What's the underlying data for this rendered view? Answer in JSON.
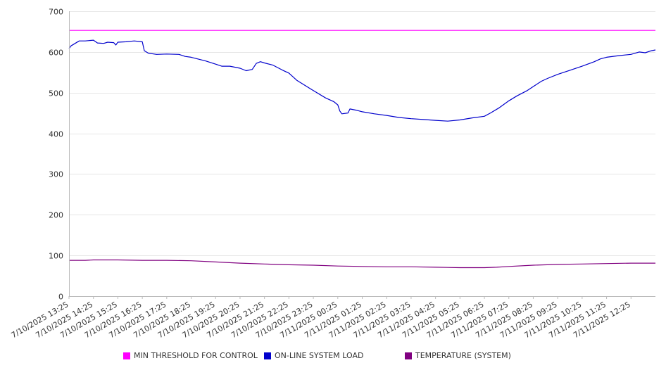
{
  "chart_data": {
    "type": "line",
    "title": "",
    "xlabel": "",
    "ylabel": "",
    "ylim": [
      0,
      700
    ],
    "y_ticks": [
      0,
      100,
      200,
      300,
      400,
      500,
      600,
      700
    ],
    "x_tick_labels": [
      "7/10/2025 13:25",
      "7/10/2025 14:25",
      "7/10/2025 15:25",
      "7/10/2025 16:25",
      "7/10/2025 17:25",
      "7/10/2025 18:25",
      "7/10/2025 19:25",
      "7/10/2025 20:25",
      "7/10/2025 21:25",
      "7/10/2025 22:25",
      "7/10/2025 23:25",
      "7/11/2025 00:25",
      "7/11/2025 01:25",
      "7/11/2025 02:25",
      "7/11/2025 03:25",
      "7/11/2025 04:25",
      "7/11/2025 05:25",
      "7/11/2025 06:25",
      "7/11/2025 07:25",
      "7/11/2025 08:25",
      "7/11/2025 09:25",
      "7/11/2025 10:25",
      "7/11/2025 11:25",
      "7/11/2025 12:25"
    ],
    "x_range": [
      "7/10/2025 13:25",
      "7/11/2025 13:25"
    ],
    "grid": "horizontal",
    "legend_position": "bottom",
    "series": [
      {
        "name": "MIN THRESHOLD FOR CONTROL",
        "color": "#ff00ff",
        "points": [
          [
            "7/10/2025 13:25",
            653
          ],
          [
            "7/11/2025 13:25",
            653
          ]
        ]
      },
      {
        "name": "ON-LINE SYSTEM LOAD",
        "color": "#0000cc",
        "points": [
          [
            "7/10/2025 13:25",
            608
          ],
          [
            "7/10/2025 13:30",
            615
          ],
          [
            "7/10/2025 13:40",
            621
          ],
          [
            "7/10/2025 13:50",
            627
          ],
          [
            "7/10/2025 14:05",
            627
          ],
          [
            "7/10/2025 14:25",
            629
          ],
          [
            "7/10/2025 14:35",
            622
          ],
          [
            "7/10/2025 14:50",
            621
          ],
          [
            "7/10/2025 15:00",
            624
          ],
          [
            "7/10/2025 15:15",
            623
          ],
          [
            "7/10/2025 15:20",
            617
          ],
          [
            "7/10/2025 15:25",
            624
          ],
          [
            "7/10/2025 15:45",
            625
          ],
          [
            "7/10/2025 16:05",
            627
          ],
          [
            "7/10/2025 16:25",
            625
          ],
          [
            "7/10/2025 16:30",
            603
          ],
          [
            "7/10/2025 16:40",
            597
          ],
          [
            "7/10/2025 17:00",
            594
          ],
          [
            "7/10/2025 17:25",
            595
          ],
          [
            "7/10/2025 17:55",
            594
          ],
          [
            "7/10/2025 18:10",
            589
          ],
          [
            "7/10/2025 18:25",
            587
          ],
          [
            "7/10/2025 19:00",
            578
          ],
          [
            "7/10/2025 19:25",
            570
          ],
          [
            "7/10/2025 19:40",
            565
          ],
          [
            "7/10/2025 20:00",
            565
          ],
          [
            "7/10/2025 20:25",
            560
          ],
          [
            "7/10/2025 20:40",
            554
          ],
          [
            "7/10/2025 20:55",
            557
          ],
          [
            "7/10/2025 21:05",
            572
          ],
          [
            "7/10/2025 21:15",
            576
          ],
          [
            "7/10/2025 21:25",
            573
          ],
          [
            "7/10/2025 21:45",
            568
          ],
          [
            "7/10/2025 22:10",
            555
          ],
          [
            "7/10/2025 22:25",
            548
          ],
          [
            "7/10/2025 22:45",
            530
          ],
          [
            "7/10/2025 23:25",
            505
          ],
          [
            "7/10/2025 23:55",
            487
          ],
          [
            "7/11/2025 00:15",
            478
          ],
          [
            "7/11/2025 00:25",
            470
          ],
          [
            "7/11/2025 00:30",
            455
          ],
          [
            "7/11/2025 00:35",
            448
          ],
          [
            "7/11/2025 00:50",
            450
          ],
          [
            "7/11/2025 00:55",
            460
          ],
          [
            "7/11/2025 01:10",
            457
          ],
          [
            "7/11/2025 01:25",
            453
          ],
          [
            "7/11/2025 01:55",
            448
          ],
          [
            "7/11/2025 02:25",
            444
          ],
          [
            "7/11/2025 02:55",
            439
          ],
          [
            "7/11/2025 03:25",
            436
          ],
          [
            "7/11/2025 03:55",
            434
          ],
          [
            "7/11/2025 04:25",
            432
          ],
          [
            "7/11/2025 04:55",
            430
          ],
          [
            "7/11/2025 05:25",
            433
          ],
          [
            "7/11/2025 05:55",
            438
          ],
          [
            "7/11/2025 06:25",
            442
          ],
          [
            "7/11/2025 06:40",
            450
          ],
          [
            "7/11/2025 07:00",
            462
          ],
          [
            "7/11/2025 07:25",
            480
          ],
          [
            "7/11/2025 07:45",
            492
          ],
          [
            "7/11/2025 08:10",
            505
          ],
          [
            "7/11/2025 08:25",
            515
          ],
          [
            "7/11/2025 08:45",
            528
          ],
          [
            "7/11/2025 09:00",
            535
          ],
          [
            "7/11/2025 09:25",
            545
          ],
          [
            "7/11/2025 09:55",
            555
          ],
          [
            "7/11/2025 10:25",
            565
          ],
          [
            "7/11/2025 10:55",
            576
          ],
          [
            "7/11/2025 11:10",
            583
          ],
          [
            "7/11/2025 11:25",
            587
          ],
          [
            "7/11/2025 11:55",
            591
          ],
          [
            "7/11/2025 12:25",
            594
          ],
          [
            "7/11/2025 12:45",
            600
          ],
          [
            "7/11/2025 13:00",
            598
          ],
          [
            "7/11/2025 13:15",
            603
          ],
          [
            "7/11/2025 13:25",
            605
          ]
        ]
      },
      {
        "name": "TEMPERATURE (SYSTEM)",
        "color": "#800080",
        "points": [
          [
            "7/10/2025 13:25",
            88
          ],
          [
            "7/10/2025 14:05",
            88
          ],
          [
            "7/10/2025 14:25",
            89
          ],
          [
            "7/10/2025 15:25",
            89
          ],
          [
            "7/10/2025 16:25",
            88
          ],
          [
            "7/10/2025 17:25",
            88
          ],
          [
            "7/10/2025 18:25",
            87
          ],
          [
            "7/10/2025 19:25",
            84
          ],
          [
            "7/10/2025 20:25",
            81
          ],
          [
            "7/10/2025 21:25",
            79
          ],
          [
            "7/10/2025 22:25",
            77
          ],
          [
            "7/10/2025 23:25",
            76
          ],
          [
            "7/11/2025 00:25",
            74
          ],
          [
            "7/11/2025 01:25",
            73
          ],
          [
            "7/11/2025 02:25",
            72
          ],
          [
            "7/11/2025 03:25",
            72
          ],
          [
            "7/11/2025 04:25",
            71
          ],
          [
            "7/11/2025 05:25",
            70
          ],
          [
            "7/11/2025 06:25",
            70
          ],
          [
            "7/11/2025 06:55",
            71
          ],
          [
            "7/11/2025 07:25",
            73
          ],
          [
            "7/11/2025 08:25",
            76
          ],
          [
            "7/11/2025 09:25",
            78
          ],
          [
            "7/11/2025 10:25",
            79
          ],
          [
            "7/11/2025 11:25",
            80
          ],
          [
            "7/11/2025 12:25",
            81
          ],
          [
            "7/11/2025 13:25",
            81
          ]
        ]
      }
    ]
  }
}
